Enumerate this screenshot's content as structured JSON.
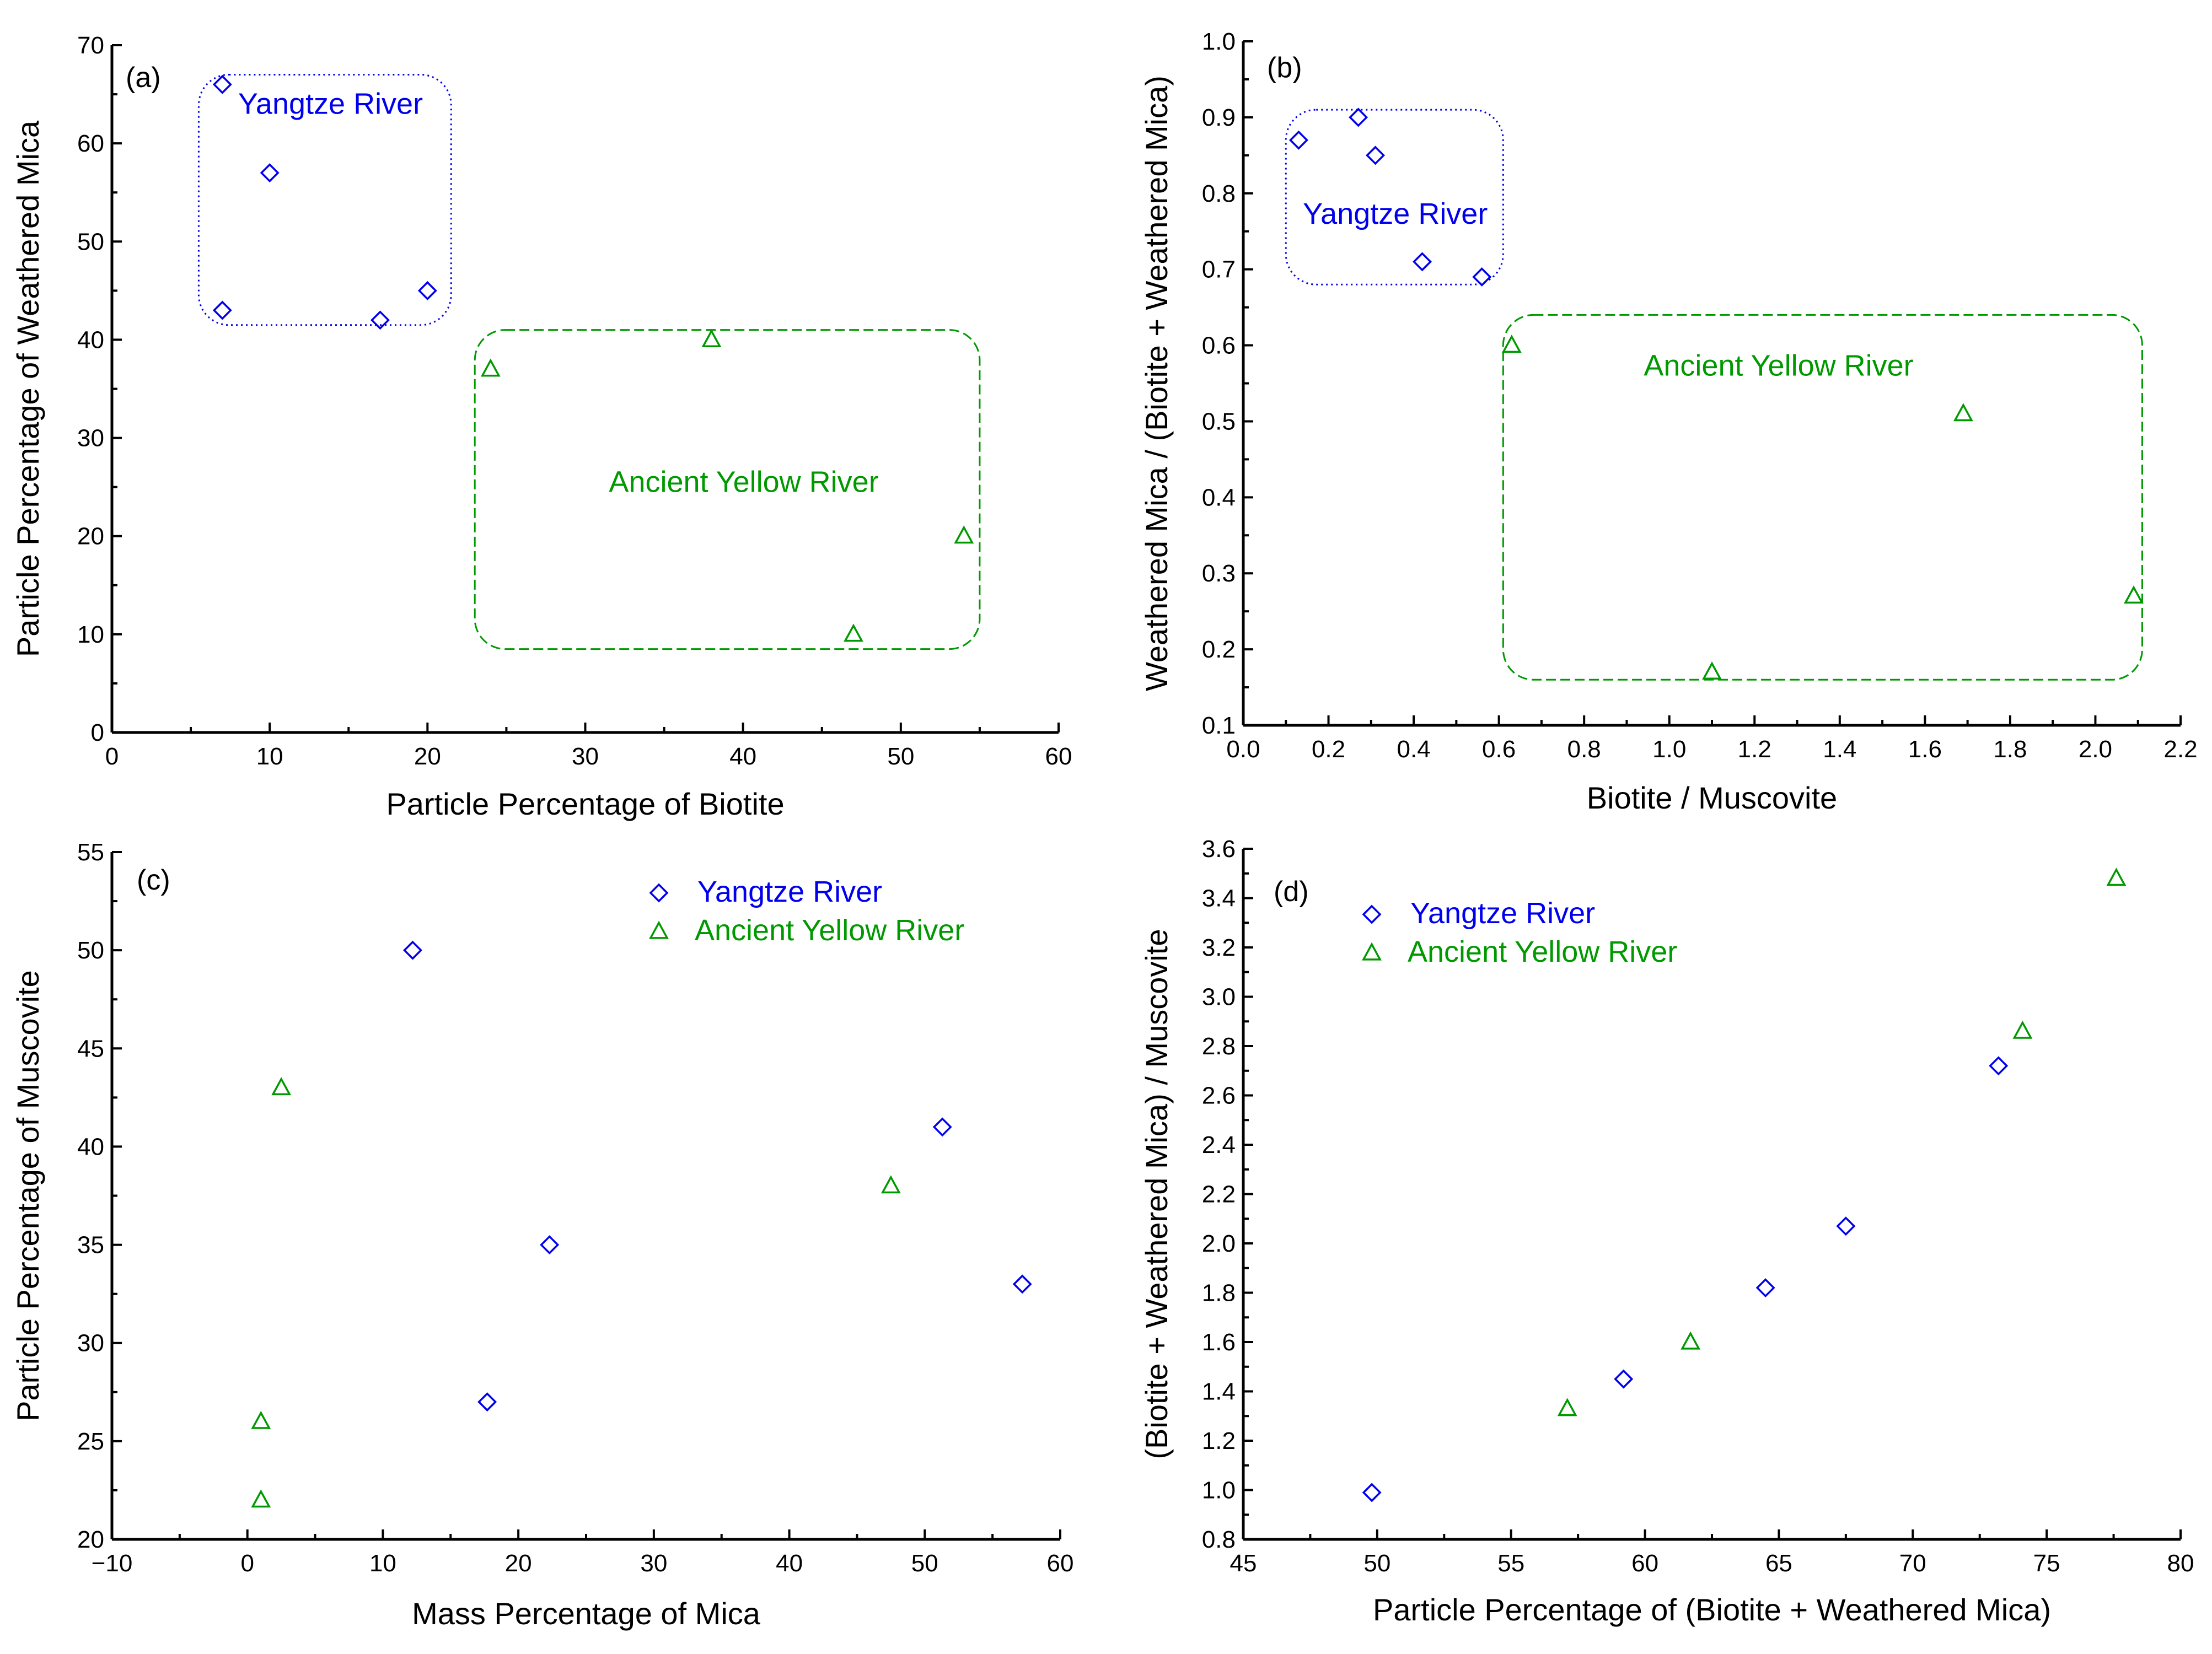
{
  "colors": {
    "yangtze": "#0000ee",
    "yellow": "#009900",
    "axis": "#000000"
  },
  "chart_data": [
    {
      "id": "a",
      "type": "scatter",
      "panel_label": "(a)",
      "xlabel": "Particle Percentage of Biotite",
      "ylabel": "Particle Percentage of Weathered Mica",
      "xlim": [
        0,
        60
      ],
      "ylim": [
        0,
        70
      ],
      "xticks": [
        0,
        10,
        20,
        30,
        40,
        50,
        60
      ],
      "yticks": [
        0,
        10,
        20,
        30,
        40,
        50,
        60,
        70
      ],
      "xtick_labels": [
        "0",
        "10",
        "20",
        "30",
        "40",
        "50",
        "60"
      ],
      "ytick_labels": [
        "0",
        "10",
        "20",
        "30",
        "40",
        "50",
        "60",
        "70"
      ],
      "series": [
        {
          "name": "Yangtze River",
          "marker": "diamond",
          "color": "#0000ee",
          "x": [
            7,
            10,
            7,
            17,
            20
          ],
          "y": [
            66,
            57,
            43,
            42,
            45
          ]
        },
        {
          "name": "Ancient Yellow River",
          "marker": "triangle",
          "color": "#009900",
          "x": [
            24,
            38,
            47,
            54
          ],
          "y": [
            37,
            40,
            10,
            20
          ]
        }
      ],
      "regions": [
        {
          "label": "Yangtze River",
          "color": "#0000ee",
          "style": "dotted",
          "x0": 5.5,
          "x1": 21.5,
          "y0": 41.5,
          "y1": 67,
          "label_x": 8,
          "label_y": 63
        },
        {
          "label": "Ancient Yellow River",
          "color": "#009900",
          "style": "dashed",
          "x0": 23,
          "x1": 55,
          "y0": 8.5,
          "y1": 41,
          "label_x": 31.5,
          "label_y": 24.5
        }
      ]
    },
    {
      "id": "b",
      "type": "scatter",
      "panel_label": "(b)",
      "xlabel": "Biotite / Muscovite",
      "ylabel": "Weathered Mica / (Biotite + Weathered Mica)",
      "xlim": [
        0,
        2.2
      ],
      "ylim": [
        0.1,
        1.0
      ],
      "xticks": [
        0,
        0.2,
        0.4,
        0.6,
        0.8,
        1.0,
        1.2,
        1.4,
        1.6,
        1.8,
        2.0,
        2.2
      ],
      "yticks": [
        0.1,
        0.2,
        0.3,
        0.4,
        0.5,
        0.6,
        0.7,
        0.8,
        0.9,
        1.0
      ],
      "xtick_labels": [
        "0.0",
        "0.2",
        "0.4",
        "0.6",
        "0.8",
        "1.0",
        "1.2",
        "1.4",
        "1.6",
        "1.8",
        "2.0",
        "2.2"
      ],
      "ytick_labels": [
        "0.1",
        "0.2",
        "0.3",
        "0.4",
        "0.5",
        "0.6",
        "0.7",
        "0.8",
        "0.9",
        "1.0"
      ],
      "series": [
        {
          "name": "Yangtze River",
          "marker": "diamond",
          "color": "#0000ee",
          "x": [
            0.13,
            0.27,
            0.31,
            0.42,
            0.56
          ],
          "y": [
            0.87,
            0.9,
            0.85,
            0.71,
            0.69
          ]
        },
        {
          "name": "Ancient Yellow River",
          "marker": "triangle",
          "color": "#009900",
          "x": [
            0.63,
            1.1,
            1.69,
            2.09
          ],
          "y": [
            0.6,
            0.17,
            0.51,
            0.27
          ]
        }
      ],
      "regions": [
        {
          "label": "Yangtze River",
          "color": "#0000ee",
          "style": "dotted",
          "x0": 0.1,
          "x1": 0.61,
          "y0": 0.68,
          "y1": 0.91,
          "label_x": 0.14,
          "label_y": 0.76
        },
        {
          "label": "Ancient Yellow River",
          "color": "#009900",
          "style": "dashed",
          "x0": 0.61,
          "x1": 2.11,
          "y0": 0.16,
          "y1": 0.64,
          "label_x": 0.94,
          "label_y": 0.56
        }
      ]
    },
    {
      "id": "c",
      "type": "scatter",
      "panel_label": "(c)",
      "xlabel": "Mass Percentage of Mica",
      "ylabel": "Particle Percentage of Muscovite",
      "xlim": [
        -10,
        60
      ],
      "ylim": [
        20,
        55
      ],
      "xticks": [
        -10,
        0,
        10,
        20,
        30,
        40,
        50,
        60
      ],
      "yticks": [
        20,
        25,
        30,
        35,
        40,
        45,
        50,
        55
      ],
      "xtick_labels": [
        "−10",
        "0",
        "10",
        "20",
        "30",
        "40",
        "50",
        "60"
      ],
      "ytick_labels": [
        "20",
        "25",
        "30",
        "35",
        "40",
        "45",
        "50",
        "55"
      ],
      "series": [
        {
          "name": "Yangtze River",
          "marker": "diamond",
          "color": "#0000ee",
          "x": [
            12.2,
            22.3,
            17.7,
            51.3,
            57.2
          ],
          "y": [
            50,
            35,
            27,
            41,
            33
          ]
        },
        {
          "name": "Ancient Yellow River",
          "marker": "triangle",
          "color": "#009900",
          "x": [
            2.5,
            1.0,
            1.0,
            47.5
          ],
          "y": [
            43,
            26,
            22,
            38
          ]
        }
      ],
      "legend": {
        "position": "top-right",
        "entries": [
          "Yangtze River",
          "Ancient Yellow River"
        ]
      }
    },
    {
      "id": "d",
      "type": "scatter",
      "panel_label": "(d)",
      "xlabel": "Particle Percentage of (Biotite + Weathered Mica)",
      "ylabel": "(Biotite + Weathered Mica) / Muscovite",
      "xlim": [
        45,
        80
      ],
      "ylim": [
        0.8,
        3.6
      ],
      "xticks": [
        45,
        50,
        55,
        60,
        65,
        70,
        75,
        80
      ],
      "yticks": [
        0.8,
        1.0,
        1.2,
        1.4,
        1.6,
        1.8,
        2.0,
        2.2,
        2.4,
        2.6,
        2.8,
        3.0,
        3.2,
        3.4,
        3.6
      ],
      "xtick_labels": [
        "45",
        "50",
        "55",
        "60",
        "65",
        "70",
        "75",
        "80"
      ],
      "ytick_labels": [
        "0.8",
        "1.0",
        "1.2",
        "1.4",
        "1.6",
        "1.8",
        "2.0",
        "2.2",
        "2.4",
        "2.6",
        "2.8",
        "3.0",
        "3.2",
        "3.4",
        "3.6"
      ],
      "series": [
        {
          "name": "Yangtze River",
          "marker": "diamond",
          "color": "#0000ee",
          "x": [
            49.8,
            59.2,
            64.5,
            67.5,
            73.2
          ],
          "y": [
            0.99,
            1.45,
            1.82,
            2.07,
            2.72
          ]
        },
        {
          "name": "Ancient Yellow River",
          "marker": "triangle",
          "color": "#009900",
          "x": [
            57.1,
            61.7,
            74.1,
            77.6
          ],
          "y": [
            1.33,
            1.6,
            2.86,
            3.48
          ]
        }
      ],
      "legend": {
        "position": "top-left",
        "entries": [
          "Yangtze River",
          "Ancient Yellow River"
        ]
      }
    }
  ]
}
